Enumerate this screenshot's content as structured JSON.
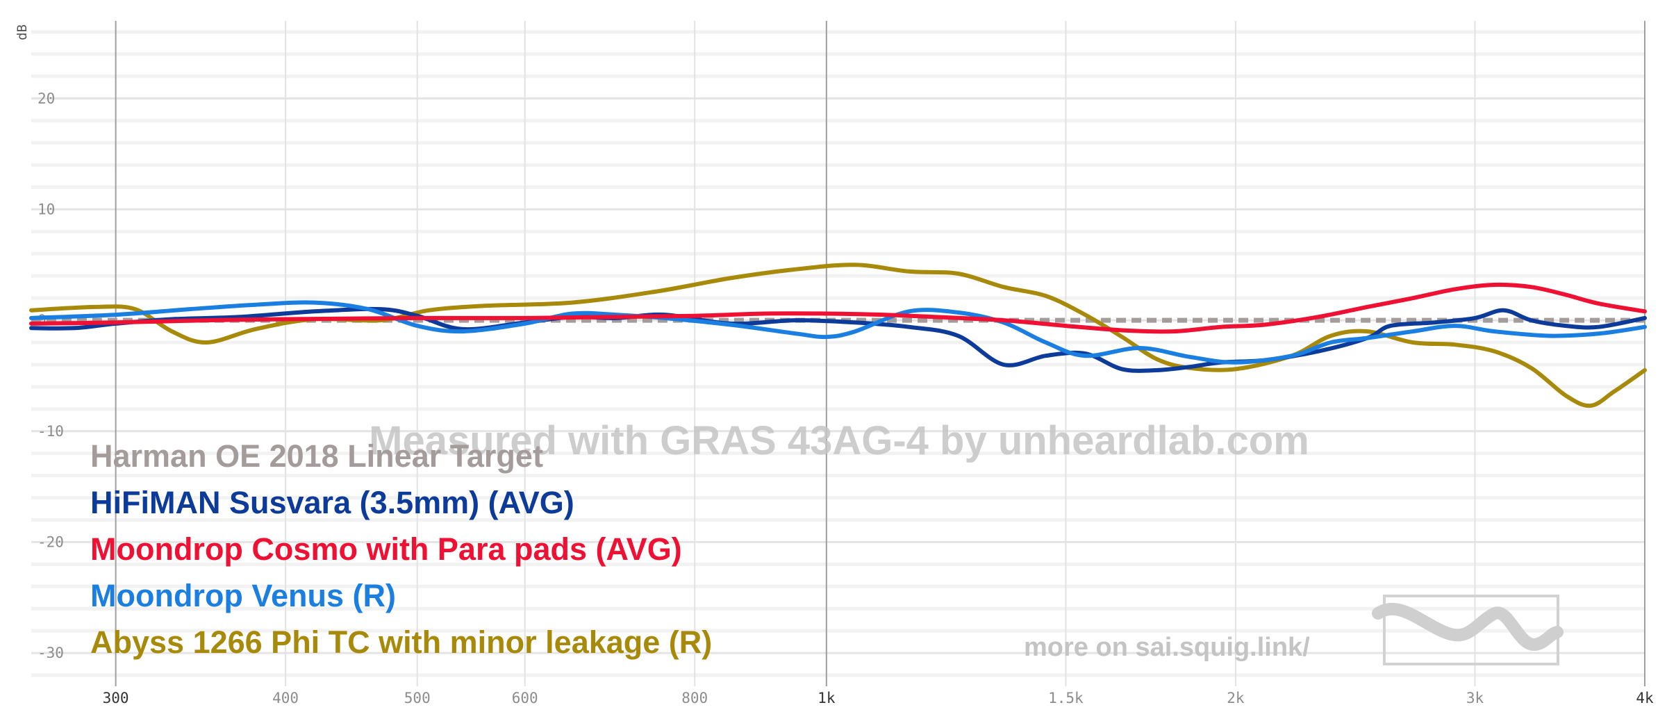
{
  "watermark": "Measured with GRAS 43AG-4 by unheardlab.com",
  "more_link": "more on sai.squig.link/",
  "logo_icon": "squiggle-logo-icon",
  "chart_data": {
    "type": "line",
    "title": "",
    "xlabel": "",
    "ylabel": "dB",
    "x_scale": "log",
    "xlim": [
      260,
      4000
    ],
    "ylim": [
      -33,
      27
    ],
    "grid": true,
    "legend_position": "bottom-left",
    "y_ticks": [
      {
        "value": 20,
        "label": "20"
      },
      {
        "value": 10,
        "label": "10"
      },
      {
        "value": 0,
        "label": "0"
      },
      {
        "value": -10,
        "label": "-10"
      },
      {
        "value": -20,
        "label": "-20"
      },
      {
        "value": -30,
        "label": "-30"
      }
    ],
    "x_ticks": [
      {
        "value": 300,
        "label": "300",
        "major": true
      },
      {
        "value": 400,
        "label": "400",
        "major": false
      },
      {
        "value": 500,
        "label": "500",
        "major": false
      },
      {
        "value": 600,
        "label": "600",
        "major": false
      },
      {
        "value": 800,
        "label": "800",
        "major": false
      },
      {
        "value": 1000,
        "label": "1k",
        "major": true
      },
      {
        "value": 1500,
        "label": "1.5k",
        "major": false
      },
      {
        "value": 2000,
        "label": "2k",
        "major": false
      },
      {
        "value": 3000,
        "label": "3k",
        "major": false
      },
      {
        "value": 4000,
        "label": "4k",
        "major": true
      }
    ],
    "series": [
      {
        "name": "Harman OE 2018 Linear Target",
        "color": "#a39c9a",
        "dashed": true,
        "points": [
          [
            260,
            0
          ],
          [
            4000,
            0
          ]
        ]
      },
      {
        "name": "HiFiMAN Susvara (3.5mm) (AVG)",
        "color": "#0d3b99",
        "dashed": false,
        "points": [
          [
            260,
            -0.7
          ],
          [
            280,
            -0.7
          ],
          [
            300,
            -0.3
          ],
          [
            330,
            0.1
          ],
          [
            370,
            0.3
          ],
          [
            420,
            0.8
          ],
          [
            470,
            1.0
          ],
          [
            500,
            0.4
          ],
          [
            540,
            -0.8
          ],
          [
            600,
            -0.2
          ],
          [
            650,
            0.3
          ],
          [
            700,
            0.2
          ],
          [
            760,
            0.5
          ],
          [
            850,
            -0.3
          ],
          [
            950,
            0.0
          ],
          [
            1050,
            -0.2
          ],
          [
            1150,
            -0.6
          ],
          [
            1250,
            -1.4
          ],
          [
            1350,
            -4.0
          ],
          [
            1450,
            -3.2
          ],
          [
            1550,
            -3.0
          ],
          [
            1650,
            -4.4
          ],
          [
            1750,
            -4.5
          ],
          [
            1850,
            -4.2
          ],
          [
            1950,
            -3.8
          ],
          [
            2100,
            -3.6
          ],
          [
            2300,
            -2.8
          ],
          [
            2500,
            -1.6
          ],
          [
            2600,
            -0.5
          ],
          [
            2800,
            -0.2
          ],
          [
            3000,
            0.2
          ],
          [
            3150,
            0.9
          ],
          [
            3300,
            0.0
          ],
          [
            3500,
            -0.5
          ],
          [
            3700,
            -0.6
          ],
          [
            4000,
            0.2
          ]
        ]
      },
      {
        "name": "Moondrop Cosmo with Para pads (AVG)",
        "color": "#ee1133",
        "dashed": false,
        "points": [
          [
            260,
            -0.3
          ],
          [
            300,
            -0.2
          ],
          [
            350,
            0.0
          ],
          [
            400,
            0.1
          ],
          [
            500,
            0.2
          ],
          [
            600,
            0.2
          ],
          [
            700,
            0.3
          ],
          [
            800,
            0.4
          ],
          [
            900,
            0.6
          ],
          [
            1000,
            0.6
          ],
          [
            1100,
            0.5
          ],
          [
            1200,
            0.3
          ],
          [
            1350,
            0.0
          ],
          [
            1500,
            -0.5
          ],
          [
            1650,
            -0.9
          ],
          [
            1800,
            -1.0
          ],
          [
            1950,
            -0.6
          ],
          [
            2100,
            -0.4
          ],
          [
            2300,
            0.3
          ],
          [
            2500,
            1.2
          ],
          [
            2700,
            2.0
          ],
          [
            2900,
            2.8
          ],
          [
            3100,
            3.2
          ],
          [
            3300,
            3.0
          ],
          [
            3500,
            2.3
          ],
          [
            3700,
            1.5
          ],
          [
            4000,
            0.8
          ]
        ]
      },
      {
        "name": "Moondrop Venus (R)",
        "color": "#1a7fe0",
        "dashed": false,
        "points": [
          [
            260,
            0.2
          ],
          [
            300,
            0.5
          ],
          [
            340,
            1.0
          ],
          [
            380,
            1.4
          ],
          [
            420,
            1.6
          ],
          [
            460,
            1.0
          ],
          [
            500,
            -0.5
          ],
          [
            540,
            -1.0
          ],
          [
            600,
            -0.3
          ],
          [
            650,
            0.6
          ],
          [
            700,
            0.5
          ],
          [
            760,
            0.2
          ],
          [
            850,
            -0.4
          ],
          [
            950,
            -1.2
          ],
          [
            1000,
            -1.5
          ],
          [
            1050,
            -1.0
          ],
          [
            1150,
            0.8
          ],
          [
            1250,
            0.7
          ],
          [
            1350,
            -0.2
          ],
          [
            1450,
            -2.0
          ],
          [
            1550,
            -3.2
          ],
          [
            1700,
            -2.5
          ],
          [
            1850,
            -3.3
          ],
          [
            2000,
            -3.8
          ],
          [
            2200,
            -3.2
          ],
          [
            2350,
            -2.0
          ],
          [
            2500,
            -1.6
          ],
          [
            2700,
            -1.0
          ],
          [
            2900,
            -0.5
          ],
          [
            3100,
            -1.0
          ],
          [
            3400,
            -1.4
          ],
          [
            3700,
            -1.2
          ],
          [
            4000,
            -0.6
          ]
        ]
      },
      {
        "name": "Abyss 1266 Phi TC with minor leakage (R)",
        "color": "#a88a0a",
        "dashed": false,
        "points": [
          [
            260,
            0.9
          ],
          [
            290,
            1.2
          ],
          [
            310,
            1.0
          ],
          [
            330,
            -1.0
          ],
          [
            350,
            -2.0
          ],
          [
            380,
            -0.8
          ],
          [
            420,
            0.1
          ],
          [
            470,
            0.0
          ],
          [
            510,
            0.9
          ],
          [
            560,
            1.3
          ],
          [
            650,
            1.6
          ],
          [
            750,
            2.6
          ],
          [
            850,
            3.8
          ],
          [
            950,
            4.6
          ],
          [
            1050,
            5.0
          ],
          [
            1150,
            4.4
          ],
          [
            1250,
            4.2
          ],
          [
            1350,
            3.0
          ],
          [
            1450,
            2.2
          ],
          [
            1550,
            0.5
          ],
          [
            1650,
            -1.5
          ],
          [
            1750,
            -3.5
          ],
          [
            1850,
            -4.3
          ],
          [
            2000,
            -4.4
          ],
          [
            2200,
            -3.2
          ],
          [
            2350,
            -1.4
          ],
          [
            2500,
            -1.0
          ],
          [
            2700,
            -2.0
          ],
          [
            2900,
            -2.2
          ],
          [
            3100,
            -2.8
          ],
          [
            3300,
            -4.3
          ],
          [
            3500,
            -6.8
          ],
          [
            3650,
            -7.7
          ],
          [
            3800,
            -6.4
          ],
          [
            4000,
            -4.5
          ]
        ]
      }
    ]
  }
}
